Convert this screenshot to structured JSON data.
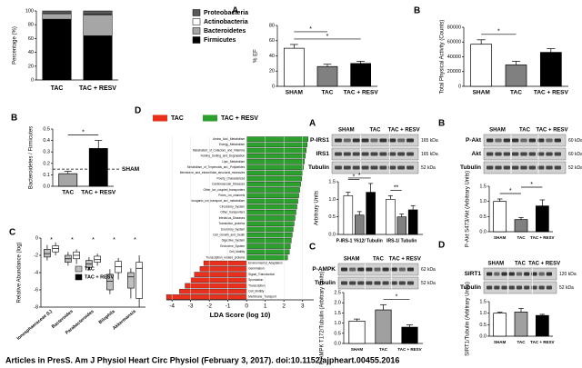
{
  "chart_data": [
    {
      "type": "stacked_bar",
      "ylabel": "Percentage (%)",
      "categories": [
        "TAC",
        "TAC + RESV"
      ],
      "ylim": [
        0,
        100
      ],
      "yticks": [
        0,
        20,
        40,
        60,
        80,
        100
      ],
      "series": [
        {
          "name": "Firmicutes",
          "color": "#000000",
          "values": [
            88,
            64
          ]
        },
        {
          "name": "Bacteroidetes",
          "color": "#a6a6a6",
          "values": [
            8,
            30
          ]
        },
        {
          "name": "Actinobacteria",
          "color": "#ffffff",
          "values": [
            1,
            1
          ]
        },
        {
          "name": "Proteobacteria",
          "color": "#595959",
          "values": [
            3,
            5
          ]
        }
      ]
    },
    {
      "type": "bar",
      "panel_label": "A",
      "ylabel": "% EF",
      "categories": [
        "SHAM",
        "TAC",
        "TAC + RESV"
      ],
      "values": [
        50,
        26,
        30
      ],
      "errors": [
        5,
        3,
        3
      ],
      "colors": [
        "#ffffff",
        "#808080",
        "#000000"
      ],
      "ylim": [
        0,
        80
      ],
      "yticks": [
        0,
        20,
        40,
        60,
        80
      ],
      "annotations": [
        "*",
        "*"
      ]
    },
    {
      "type": "bar",
      "panel_label": "B",
      "ylabel": "Total Physical Activity (Counts)",
      "categories": [
        "SHAM",
        "TAC",
        "TAC + RESV"
      ],
      "values": [
        57000,
        29000,
        46000
      ],
      "errors": [
        6000,
        5000,
        5000
      ],
      "colors": [
        "#ffffff",
        "#808080",
        "#000000"
      ],
      "ylim": [
        0,
        80000
      ],
      "yticks": [
        0,
        20000,
        40000,
        60000,
        80000
      ],
      "annotations": [
        "*"
      ]
    },
    {
      "type": "bar",
      "panel_label": "B",
      "ylabel": "Bacteroidetes / Firmicutes",
      "categories": [
        "TAC",
        "TAC + RESV"
      ],
      "values": [
        0.11,
        0.33
      ],
      "errors": [
        0.02,
        0.07
      ],
      "colors": [
        "#a6a6a6",
        "#000000"
      ],
      "ylim": [
        0,
        0.5
      ],
      "yticks": [
        {
          "value": 0,
          "label": "0.0"
        },
        0.1,
        0.2,
        0.3,
        0.4,
        0.5
      ],
      "reference": {
        "label": "SHAM",
        "value": 0.15
      },
      "annotations": [
        "*"
      ]
    },
    {
      "type": "box",
      "panel_label": "C",
      "ylabel": "Relative Abundance (log)",
      "categories": [
        "Ionosphaeraceae (L)",
        "Bacteroides",
        "Parabacteroides",
        "Bilophila",
        "Akkermansia"
      ],
      "ylim": [
        -8,
        0
      ],
      "yticks": [
        -8,
        -6,
        -4,
        -2,
        0
      ],
      "annotations": [
        "*",
        "*",
        "*",
        "*",
        "*"
      ],
      "series": [
        {
          "name": "TAC",
          "color": "#bfbfbf",
          "boxes": [
            [
              -2.6,
              -2.2,
              -1.8,
              -1.3,
              -0.8
            ],
            [
              -3.2,
              -2.8,
              -2.4,
              -2.0,
              -1.6
            ],
            [
              -3.8,
              -3.4,
              -3.0,
              -2.6,
              -2.2
            ],
            [
              -6.5,
              -6.0,
              -5.0,
              -4.2,
              -3.6
            ],
            [
              -7.0,
              -5.8,
              -4.5,
              -4.0,
              -3.5
            ]
          ]
        },
        {
          "name": "TAC + RESV",
          "color": "#ffffff",
          "boxes": [
            [
              -2.0,
              -1.6,
              -1.2,
              -0.9,
              -0.5
            ],
            [
              -3.0,
              -2.4,
              -2.0,
              -1.6,
              -1.3
            ],
            [
              -3.2,
              -2.8,
              -2.5,
              -2.1,
              -1.8
            ],
            [
              -4.8,
              -4.0,
              -3.3,
              -2.7,
              -2.3
            ],
            [
              -8.0,
              -7.0,
              -3.5,
              -2.8,
              -2.0
            ]
          ]
        }
      ]
    },
    {
      "type": "barh",
      "panel_label": "D",
      "xlabel": "LDA Score (log 10)",
      "xlim": [
        -4.3,
        3.6
      ],
      "xticks": [
        -4,
        -3,
        -2,
        -1,
        0,
        1,
        2,
        3
      ],
      "series": [
        {
          "name": "TAC",
          "color": "#e8301c",
          "categories": [
            "Environmental_Adaptation",
            "Germination",
            "Signal_Transduction",
            "Sporulation",
            "Transcription",
            "Cell_Motility",
            "Membrane_Transport"
          ],
          "values": [
            -2.3,
            -2.5,
            -2.8,
            -3.0,
            -3.3,
            -3.6,
            -4.3
          ]
        },
        {
          "name": "TAC + RESV",
          "color": "#2ca02c",
          "categories": [
            "Amino_Acid_Metabolism",
            "Energy_Metabolism",
            "Metabolism_of_Cofactors_and_Vitamins",
            "Folding_Sorting_and_Degradation",
            "Lipid_Metabolism",
            "Metabolism_of_Terpenoids_and_Polyketides",
            "Membrane_and_intracellular_structural_molecules",
            "Poorly_Characterized",
            "Cardiovascular_Diseases",
            "Other_ion_coupled_transporters",
            "Pores_ion_channels",
            "Inorganic_ion_transport_and_metabolism",
            "Circulatory_System",
            "Other_transporters",
            "Infectious_Diseases",
            "Translation_proteins",
            "Excretory_System",
            "Cell_Growth_and_Death",
            "Digestive_System",
            "Endocrine_System",
            "Cell_Motility",
            "Transcription_related_proteins"
          ],
          "values": [
            3.3,
            3.25,
            3.2,
            3.15,
            3.1,
            3.05,
            3.0,
            2.95,
            2.9,
            2.85,
            2.8,
            2.75,
            2.7,
            2.65,
            2.6,
            2.55,
            2.5,
            2.45,
            2.4,
            2.35,
            2.3,
            2.2
          ]
        }
      ]
    },
    {
      "type": "grouped_bar",
      "panel_label": "A",
      "ylabel": "Arbitrary Units",
      "blot": {
        "lanes": [
          "SHAM",
          "TAC",
          "TAC + RESV"
        ],
        "rows": [
          {
            "label": "P-IRS1",
            "size": "165 kDa"
          },
          {
            "label": "IRS1",
            "size": "165 kDa"
          },
          {
            "label": "Tubulin",
            "size": "52 kDa"
          }
        ]
      },
      "categories": [
        "P-IRS-1 Y612/ Tubulin",
        "IRS-1/ Tubulin"
      ],
      "series": [
        {
          "color": "#ffffff",
          "values": [
            1.1,
            1.0
          ],
          "errors": [
            0.1,
            0.1
          ]
        },
        {
          "color": "#808080",
          "values": [
            0.55,
            0.5
          ],
          "errors": [
            0.1,
            0.08
          ]
        },
        {
          "color": "#000000",
          "values": [
            1.2,
            0.7
          ],
          "errors": [
            0.25,
            0.12
          ]
        }
      ],
      "ylim": [
        0,
        1.5
      ],
      "yticks": [
        {
          "value": 0,
          "label": "0.0"
        },
        0.5,
        {
          "value": 1,
          "label": "1.0"
        },
        1.5
      ],
      "annotations": [
        "*",
        "*",
        "**"
      ]
    },
    {
      "type": "bar",
      "panel_label": "B",
      "ylabel": "P-Akt S473/Akt (Arbitrary Units)",
      "blot": {
        "lanes": [
          "SHAM",
          "TAC",
          "TAC + RESV"
        ],
        "rows": [
          {
            "label": "P-Akt",
            "size": "60 kDa"
          },
          {
            "label": "Akt",
            "size": "60 kDa"
          },
          {
            "label": "Tubulin",
            "size": "52 kDa"
          }
        ]
      },
      "categories": [
        "SHAM",
        "TAC",
        "TAC + RESV"
      ],
      "values": [
        1.0,
        0.4,
        0.85
      ],
      "errors": [
        0.08,
        0.07,
        0.2
      ],
      "colors": [
        "#ffffff",
        "#808080",
        "#000000"
      ],
      "ylim": [
        0,
        1.5
      ],
      "yticks": [
        {
          "value": 0,
          "label": "0.0"
        },
        0.5,
        {
          "value": 1,
          "label": "1.0"
        },
        1.5
      ],
      "annotations": [
        "*",
        "*"
      ]
    },
    {
      "type": "bar",
      "panel_label": "C",
      "ylabel": "P-AMPK T172/Tubulin (Arbitrary Units)",
      "blot": {
        "lanes": [
          "SHAM",
          "TAC",
          "TAC + RESV"
        ],
        "rows": [
          {
            "label": "P-AMPK",
            "size": "62 kDa"
          },
          {
            "label": "Tubulin",
            "size": "52 kDa"
          }
        ]
      },
      "categories": [
        "SHAM",
        "TAC",
        "TAC + RESV"
      ],
      "values": [
        1.1,
        1.65,
        0.8
      ],
      "errors": [
        0.1,
        0.25,
        0.12
      ],
      "colors": [
        "#ffffff",
        "#a0a0a0",
        "#000000"
      ],
      "ylim": [
        0,
        2.5
      ],
      "yticks": [
        {
          "value": 0,
          "label": "0.0"
        },
        0.5,
        {
          "value": 1,
          "label": "1.0"
        },
        1.5,
        {
          "value": 2,
          "label": "2.0"
        },
        2.5
      ],
      "annotations": [
        "*"
      ]
    },
    {
      "type": "bar",
      "panel_label": "D",
      "ylabel": "SIRT1/Tubulin (Arbitrary Units)",
      "blot": {
        "lanes": [
          "SHAM",
          "TAC",
          "TAC + RESV"
        ],
        "rows": [
          {
            "label": "SIRT1",
            "size": "120 kDa"
          },
          {
            "label": "Tubulin",
            "size": "52 kDa"
          }
        ]
      },
      "categories": [
        "SHAM",
        "TAC",
        "TAC + RESV"
      ],
      "values": [
        1.0,
        1.05,
        0.9
      ],
      "errors": [
        0.04,
        0.15,
        0.05
      ],
      "colors": [
        "#ffffff",
        "#a0a0a0",
        "#000000"
      ],
      "ylim": [
        0,
        1.5
      ],
      "yticks": [
        {
          "value": 0,
          "label": "0.0"
        },
        0.5,
        {
          "value": 1,
          "label": "1.0"
        },
        1.5
      ]
    }
  ],
  "footer": "Articles in PresS. Am J Physiol Heart Circ Physiol (February 3, 2017). doi:10.1152/ajpheart.00455.2016"
}
